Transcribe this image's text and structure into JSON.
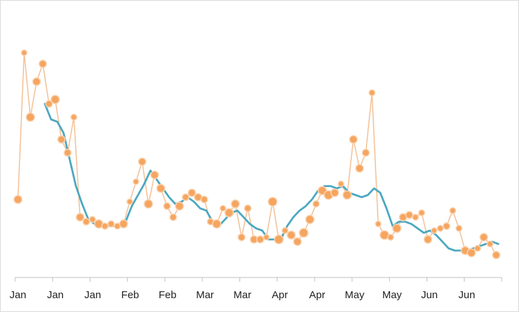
{
  "chart_data": {
    "type": "line",
    "title": "",
    "xlabel": "",
    "ylabel": "",
    "ylim": [
      0,
      100
    ],
    "grid": false,
    "legend": "none",
    "x_tick_labels": [
      "Jan",
      "Jan",
      "Jan",
      "Feb",
      "Feb",
      "Mar",
      "Mar",
      "Apr",
      "Apr",
      "May",
      "May",
      "Jun",
      "Jun"
    ],
    "colors": {
      "points": "#F5A55F",
      "connector": "#F3C39A",
      "moving_average": "#4BA8C0",
      "axis": "#BFBFBF"
    },
    "series": [
      {
        "marker": "circle",
        "x": [
          0,
          9,
          18,
          27,
          36,
          45,
          54,
          63,
          72,
          81,
          90,
          99,
          108,
          117,
          126,
          135,
          144,
          153,
          162,
          171,
          180,
          189,
          198,
          207,
          216,
          225,
          234,
          243,
          252,
          261,
          270,
          279,
          288,
          297,
          306,
          315,
          324,
          333,
          342,
          351,
          360,
          369,
          378,
          387,
          396,
          405,
          414,
          423,
          432,
          441,
          450,
          459,
          468,
          477,
          486,
          495,
          504,
          513,
          522,
          531,
          540,
          549,
          558,
          567,
          576,
          585,
          594,
          603,
          612,
          621,
          630,
          639,
          648,
          657,
          666,
          675,
          684,
          693
        ],
        "values": [
          32,
          98,
          69,
          85,
          93,
          75,
          77,
          59,
          53,
          69,
          24,
          22,
          23,
          21,
          20,
          21,
          20,
          21,
          31,
          40,
          49,
          30,
          43,
          37,
          29,
          24,
          29,
          33,
          35,
          33,
          32,
          22,
          21,
          28,
          26,
          30,
          15,
          28,
          14,
          14,
          15,
          31,
          14,
          18,
          16,
          13,
          17,
          23,
          30,
          36,
          34,
          35,
          39,
          34,
          59,
          46,
          53,
          80,
          21,
          16,
          15,
          19,
          24,
          25,
          24,
          26,
          14,
          18,
          19,
          20,
          27,
          19,
          9,
          8,
          10,
          15,
          12,
          7
        ],
        "sizes": [
          8.5,
          5.0,
          9.0,
          8.0,
          7.5,
          6.5,
          9.0,
          7.5,
          7.0,
          5.5,
          8.0,
          6.5,
          5.5,
          9.0,
          6.0,
          6.0,
          5.5,
          8.5,
          5.0,
          5.0,
          7.5,
          9.0,
          8.0,
          8.5,
          6.5,
          6.5,
          8.5,
          6.5,
          7.5,
          7.5,
          6.5,
          6.0,
          9.0,
          5.0,
          9.0,
          8.5,
          7.0,
          6.5,
          7.5,
          7.0,
          5.0,
          9.5,
          9.5,
          5.5,
          8.5,
          8.0,
          9.5,
          9.0,
          6.0,
          9.0,
          9.5,
          8.0,
          5.0,
          9.0,
          8.0,
          8.0,
          7.0,
          5.5,
          5.0,
          9.5,
          5.5,
          9.0,
          7.5,
          7.0,
          5.5,
          5.5,
          8.0,
          5.0,
          5.5,
          6.5,
          5.5,
          5.5,
          8.5,
          8.5,
          5.5,
          8.0,
          5.5,
          7.5
        ]
      },
      {
        "marker": "none",
        "x": [
          39,
          48,
          57,
          66,
          75,
          84,
          93,
          102,
          111,
          120,
          129,
          138,
          147,
          156,
          165,
          174,
          183,
          192,
          201,
          210,
          219,
          228,
          237,
          246,
          255,
          264,
          273,
          282,
          291,
          300,
          309,
          318,
          327,
          336,
          345,
          354,
          363,
          372,
          381,
          390,
          399,
          408,
          417,
          426,
          435,
          444,
          453,
          462,
          471,
          480,
          489,
          498,
          507,
          516,
          525,
          534,
          543,
          552,
          561,
          570,
          579,
          588,
          597,
          606,
          615,
          624,
          633,
          642,
          651,
          660,
          669,
          678,
          687,
          696
        ],
        "values": [
          75,
          68,
          67,
          62,
          50,
          38,
          30,
          23,
          21,
          21,
          20,
          20,
          21,
          22,
          29,
          34,
          39,
          45,
          41,
          37,
          33,
          30,
          31,
          33,
          31,
          28,
          27,
          22,
          20,
          23,
          26,
          27,
          24,
          21,
          19,
          18,
          14,
          14,
          14,
          20,
          24,
          27,
          29,
          32,
          36,
          38,
          38,
          37,
          38,
          35,
          34,
          33,
          34,
          37,
          35,
          28,
          20,
          22,
          22,
          21,
          19,
          17,
          18,
          16,
          13,
          10,
          9,
          9,
          9,
          10,
          11,
          12,
          13,
          12
        ]
      }
    ]
  }
}
